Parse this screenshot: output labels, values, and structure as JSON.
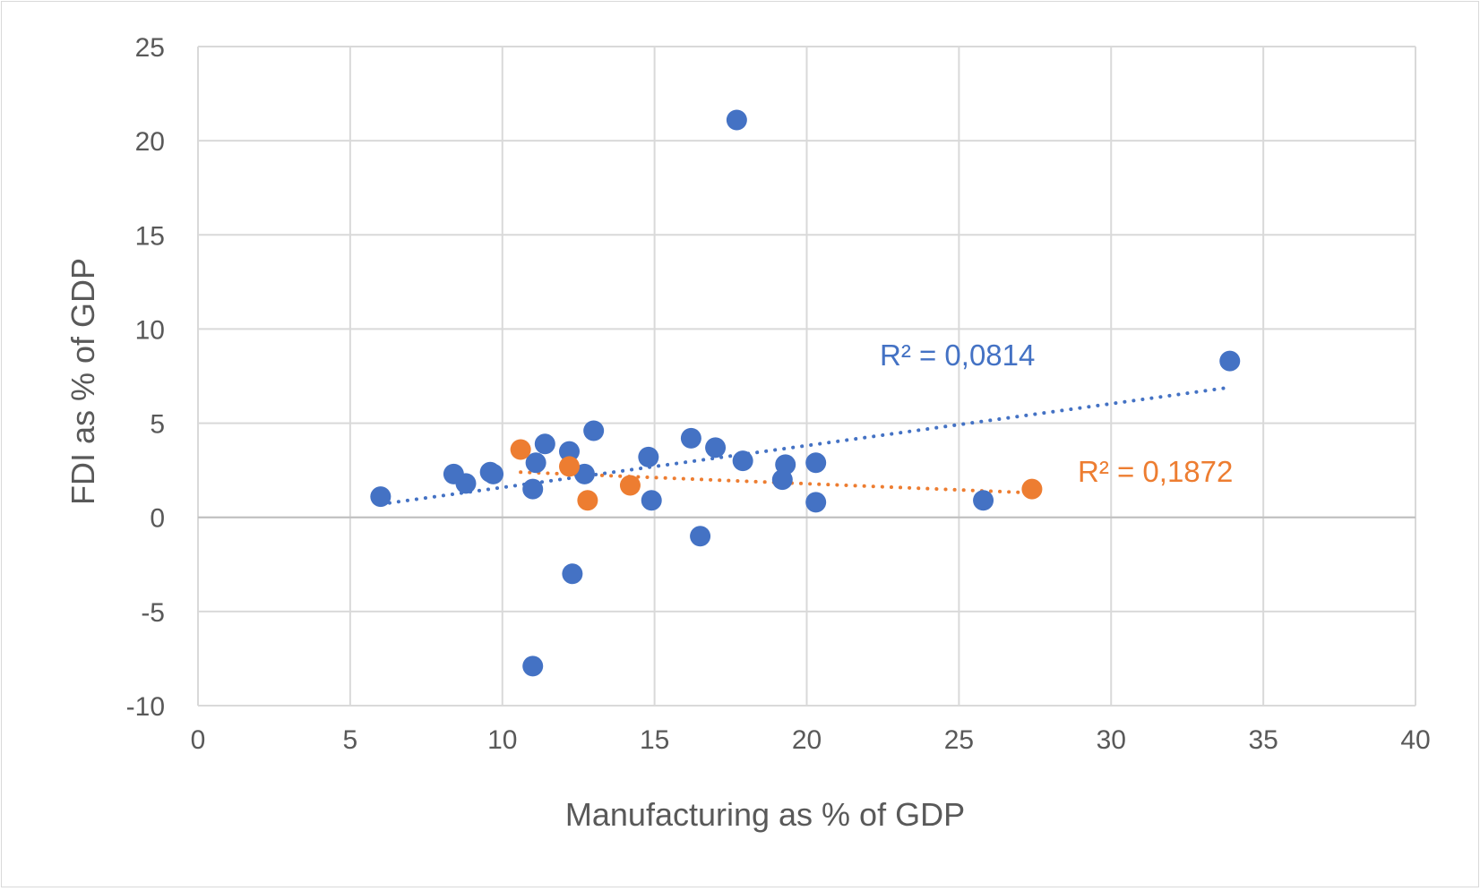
{
  "chart_data": {
    "type": "scatter",
    "title": "",
    "xlabel": "Manufacturing as % of GDP",
    "ylabel": "FDI as % of GDP",
    "xlim": [
      0,
      40
    ],
    "ylim": [
      -10,
      25
    ],
    "x_ticks": [
      "0",
      "5",
      "10",
      "15",
      "20",
      "25",
      "30",
      "35",
      "40"
    ],
    "y_ticks": [
      "-10",
      "-5",
      "0",
      "5",
      "10",
      "15",
      "20",
      "25"
    ],
    "grid": true,
    "legend": "none",
    "series": [
      {
        "color": "#4472c4",
        "points": [
          [
            6.0,
            1.1
          ],
          [
            8.4,
            2.3
          ],
          [
            8.8,
            1.8
          ],
          [
            9.6,
            2.4
          ],
          [
            9.7,
            2.3
          ],
          [
            11.0,
            1.5
          ],
          [
            11.1,
            2.9
          ],
          [
            11.4,
            3.9
          ],
          [
            12.2,
            3.5
          ],
          [
            12.7,
            2.3
          ],
          [
            13.0,
            4.6
          ],
          [
            12.3,
            -3.0
          ],
          [
            11.0,
            -7.9
          ],
          [
            14.8,
            3.2
          ],
          [
            14.9,
            0.9
          ],
          [
            16.2,
            4.2
          ],
          [
            17.0,
            3.7
          ],
          [
            17.7,
            21.1
          ],
          [
            17.9,
            3.0
          ],
          [
            16.5,
            -1.0
          ],
          [
            19.2,
            2.0
          ],
          [
            19.3,
            2.8
          ],
          [
            20.3,
            2.9
          ],
          [
            20.3,
            0.8
          ],
          [
            25.8,
            0.9
          ],
          [
            33.9,
            8.3
          ]
        ],
        "trendline": {
          "style": "dotted",
          "x_range": [
            6.0,
            33.9
          ],
          "y_range": [
            0.7,
            6.9
          ]
        },
        "r2_label": "R² = 0,0814"
      },
      {
        "color": "#ed7d31",
        "points": [
          [
            10.6,
            3.6
          ],
          [
            12.2,
            2.7
          ],
          [
            12.8,
            0.9
          ],
          [
            14.2,
            1.7
          ],
          [
            27.4,
            1.5
          ]
        ],
        "trendline": {
          "style": "dotted",
          "x_range": [
            10.6,
            27.4
          ],
          "y_range": [
            2.4,
            1.3
          ]
        },
        "r2_label": "R² = 0,1872"
      }
    ]
  }
}
